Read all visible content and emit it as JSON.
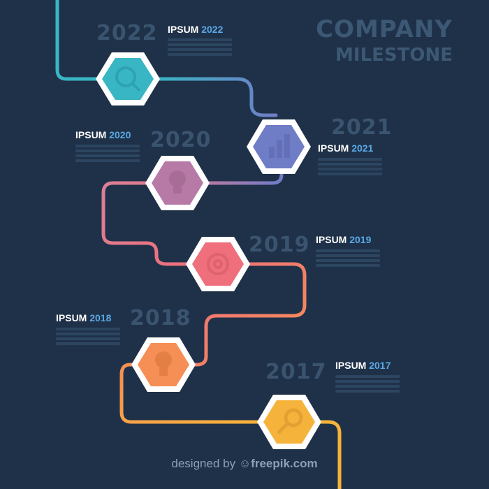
{
  "title": {
    "line1": "COMPANY",
    "line2": "MILESTONE"
  },
  "milestones": [
    {
      "year_big": "2022",
      "label": "IPSUM",
      "year": "2022",
      "color": "#38b6c4",
      "icon": "search-document-icon"
    },
    {
      "year_big": "2021",
      "label": "IPSUM",
      "year": "2021",
      "color": "#6f7cc6",
      "icon": "chart-icon"
    },
    {
      "year_big": "2020",
      "label": "IPSUM",
      "year": "2020",
      "color": "#b77aa6",
      "icon": "lightbulb-icon"
    },
    {
      "year_big": "2019",
      "label": "IPSUM",
      "year": "2019",
      "color": "#ef6f7c",
      "icon": "target-icon"
    },
    {
      "year_big": "2018",
      "label": "IPSUM",
      "year": "2018",
      "color": "#f58f55",
      "icon": "lightbulb-icon"
    },
    {
      "year_big": "2017",
      "label": "IPSUM",
      "year": "2017",
      "color": "#f6b33c",
      "icon": "magnifier-icon"
    }
  ],
  "colors": {
    "background": "#1f3148",
    "year_accent": "#5aa9e6",
    "hex_border": "#ffffff"
  },
  "credit": {
    "prefix": "designed by",
    "brand": "freepik.com"
  }
}
